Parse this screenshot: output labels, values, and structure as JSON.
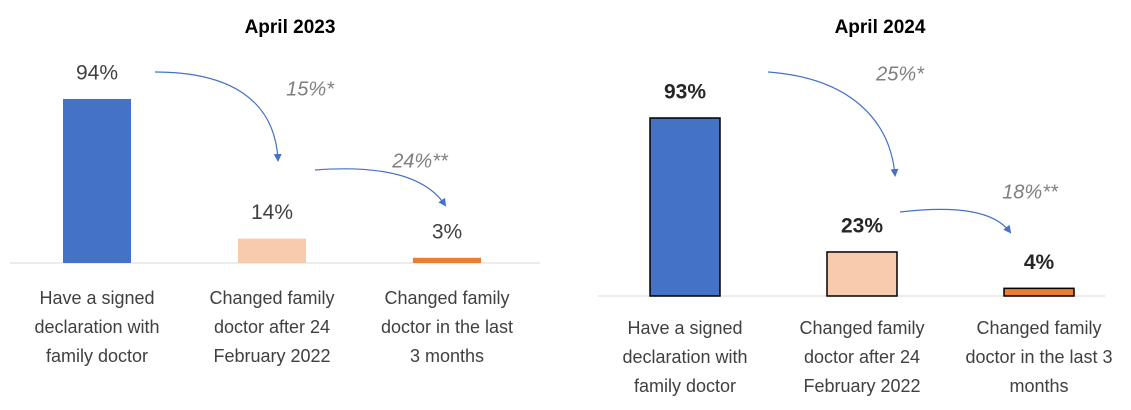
{
  "chart_data": [
    {
      "type": "bar",
      "title": "April 2023",
      "categories": [
        "Have a signed declaration with family doctor",
        "Changed family doctor after 24 February 2022",
        "Changed family doctor in the last 3 months"
      ],
      "values": [
        94,
        14,
        3
      ],
      "value_labels": [
        "94%",
        "14%",
        "3%"
      ],
      "colors": [
        "#4472c4",
        "#f8cbad",
        "#ed7d31"
      ],
      "annotations": [
        "15%*",
        "24%**"
      ]
    },
    {
      "type": "bar",
      "title": "April 2024",
      "categories": [
        "Have a signed declaration with family doctor",
        "Changed family doctor after 24 February 2022",
        "Changed family doctor in the last 3 months"
      ],
      "values": [
        93,
        23,
        4
      ],
      "value_labels": [
        "93%",
        "23%",
        "4%"
      ],
      "colors": [
        "#4472c4",
        "#f8cbad",
        "#ed7d31"
      ],
      "bar_outline": "#000000",
      "annotations": [
        "25%*",
        "18%**"
      ]
    }
  ]
}
